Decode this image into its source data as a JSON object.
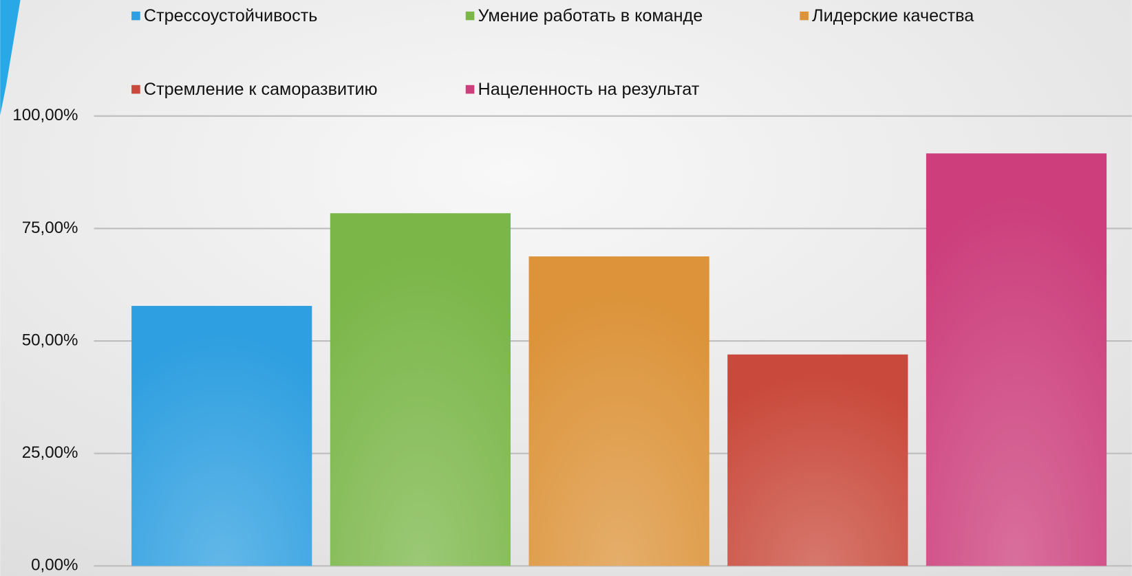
{
  "chart_data": {
    "type": "bar",
    "categories": [
      null
    ],
    "series": [
      {
        "name": "Стрессоустойчивость",
        "color": "#2e9fe0",
        "values": [
          57.8
        ]
      },
      {
        "name": "Умение работать в команде",
        "color": "#7ab648",
        "values": [
          78.4
        ]
      },
      {
        "name": "Лидерские качества",
        "color": "#dc9339",
        "values": [
          68.8
        ]
      },
      {
        "name": "Стремление к саморазвитию",
        "color": "#c94a3c",
        "values": [
          47
        ]
      },
      {
        "name": "Нацеленность на результат",
        "color": "#cc3f7c",
        "values": [
          91.7
        ]
      }
    ],
    "ylim": [
      0,
      100
    ],
    "yticks": [
      {
        "value": 0,
        "label": "0,00%"
      },
      {
        "value": 25,
        "label": "25,00%"
      },
      {
        "value": 50,
        "label": "50,00%"
      },
      {
        "value": 75,
        "label": "75,00%"
      },
      {
        "value": 100,
        "label": "100,00%"
      }
    ],
    "grid": true
  }
}
